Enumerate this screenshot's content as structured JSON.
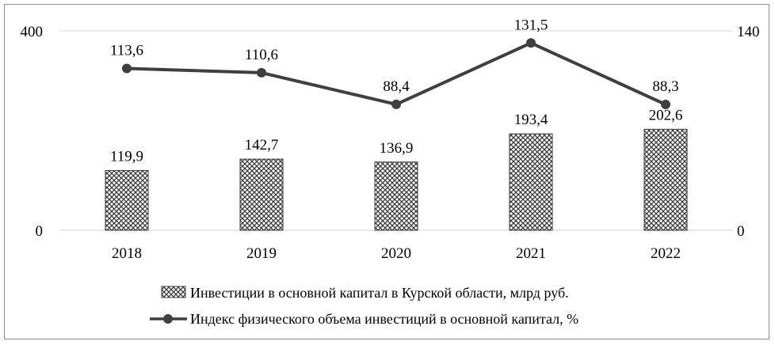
{
  "chart_data": {
    "type": "bar+line",
    "categories": [
      "2018",
      "2019",
      "2020",
      "2021",
      "2022"
    ],
    "series": [
      {
        "name": "Инвестиции в основной капитал в Курской области, млрд руб.",
        "type": "bar",
        "axis": "left",
        "values": [
          119.9,
          142.7,
          136.9,
          193.4,
          202.6
        ],
        "labels": [
          "119,9",
          "142,7",
          "136,9",
          "193,4",
          "202,6"
        ]
      },
      {
        "name": "Индекс физического объема инвестиций в основной капитал, %",
        "type": "line",
        "axis": "right",
        "values": [
          113.6,
          110.6,
          88.4,
          131.5,
          88.3
        ],
        "labels": [
          "113,6",
          "110,6",
          "88,4",
          "131,5",
          "88,3"
        ]
      }
    ],
    "y_left": {
      "range": [
        0,
        400
      ],
      "ticks": [
        "0",
        "400"
      ]
    },
    "y_right": {
      "range": [
        0,
        140
      ],
      "ticks": [
        "0",
        "140"
      ]
    },
    "grid": true,
    "legend_position": "bottom",
    "colors": {
      "bar_fill": "#d9d9d9",
      "bar_pattern": "#3a3a3a",
      "line": "#3f3f3f",
      "grid": "#d9d9d9"
    }
  }
}
